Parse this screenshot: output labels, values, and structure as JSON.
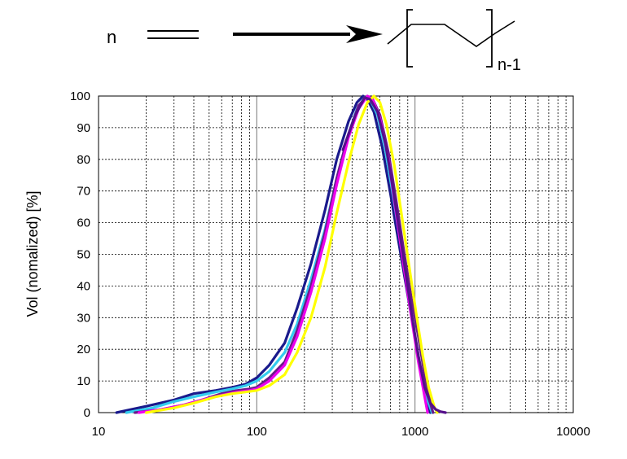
{
  "reaction": {
    "coefficient": "n",
    "subscript": "n-1"
  },
  "chart_data": {
    "type": "line",
    "title": "",
    "xlabel": "",
    "ylabel": "Vol (nomalized) [%]",
    "xscale": "log",
    "xlim": [
      10,
      10000
    ],
    "ylim": [
      0,
      100
    ],
    "grid": true,
    "xticks": [
      10,
      100,
      1000,
      10000
    ],
    "xtick_labels": [
      "10",
      "100",
      "1000",
      "10000"
    ],
    "yticks": [
      0,
      10,
      20,
      30,
      40,
      50,
      60,
      70,
      80,
      90,
      100
    ],
    "ytick_labels": [
      "0",
      "10",
      "20",
      "30",
      "40",
      "50",
      "60",
      "70",
      "80",
      "90",
      "100"
    ],
    "series": [
      {
        "name": "navy",
        "color": "#1a1a8c",
        "x": [
          13,
          20,
          30,
          40,
          55,
          70,
          85,
          100,
          120,
          150,
          180,
          220,
          270,
          320,
          380,
          430,
          470,
          500,
          550,
          620,
          700,
          800,
          900,
          1000,
          1100,
          1200,
          1250
        ],
        "y": [
          0,
          2,
          4,
          6,
          7,
          8,
          9,
          11,
          15,
          22,
          33,
          47,
          64,
          80,
          92,
          98,
          100,
          99,
          95,
          84,
          69,
          52,
          37,
          24,
          12,
          3,
          0
        ]
      },
      {
        "name": "cyan",
        "color": "#33ccee",
        "x": [
          15,
          22,
          30,
          40,
          55,
          70,
          85,
          100,
          120,
          150,
          180,
          220,
          270,
          320,
          380,
          430,
          480,
          520,
          580,
          650,
          730,
          820,
          920,
          1000,
          1100,
          1200,
          1280
        ],
        "y": [
          0,
          1.5,
          3.5,
          5,
          6.5,
          7.5,
          8.5,
          10,
          13,
          19,
          28,
          42,
          58,
          74,
          88,
          96,
          99.5,
          99,
          94,
          83,
          68,
          52,
          36,
          24,
          12,
          4,
          0
        ]
      },
      {
        "name": "purple",
        "color": "#6a1b8a",
        "x": [
          17,
          25,
          35,
          45,
          60,
          75,
          90,
          100,
          120,
          150,
          180,
          220,
          270,
          320,
          380,
          440,
          500,
          540,
          600,
          680,
          760,
          850,
          950,
          1050,
          1150,
          1250,
          1300
        ],
        "y": [
          0,
          1,
          2.5,
          4,
          6,
          7,
          7.5,
          8,
          11,
          16,
          26,
          40,
          57,
          74,
          88,
          97,
          100,
          99,
          94,
          82,
          67,
          51,
          36,
          24,
          12,
          3,
          0
        ]
      },
      {
        "name": "magenta",
        "color": "#ee00ee",
        "x": [
          18,
          25,
          35,
          45,
          60,
          75,
          90,
          100,
          120,
          150,
          180,
          220,
          270,
          320,
          380,
          440,
          500,
          540,
          600,
          680,
          760,
          850,
          950,
          1050,
          1150,
          1200
        ],
        "y": [
          0,
          1,
          2.5,
          4,
          5.5,
          6.5,
          7,
          7.5,
          10,
          15,
          24,
          38,
          55,
          72,
          87,
          96,
          100,
          99,
          93,
          80,
          63,
          46,
          30,
          16,
          5,
          0
        ]
      },
      {
        "name": "yellow",
        "color": "#ffff00",
        "x": [
          20,
          30,
          40,
          55,
          70,
          85,
          100,
          120,
          150,
          180,
          220,
          270,
          320,
          380,
          440,
          500,
          550,
          600,
          660,
          740,
          820,
          920,
          1020,
          1120,
          1220,
          1320,
          1380
        ],
        "y": [
          0,
          1.5,
          3,
          5,
          6,
          6.5,
          7,
          8.5,
          12,
          19,
          30,
          46,
          63,
          79,
          91,
          98,
          100,
          98,
          91,
          78,
          63,
          46,
          31,
          18,
          8,
          2,
          0
        ]
      },
      {
        "name": "dark-purple",
        "color": "#55108a",
        "x": [
          350,
          420,
          480,
          520,
          580,
          650,
          720,
          800,
          880,
          960,
          1050,
          1150,
          1250,
          1350,
          1450,
          1560
        ],
        "y": [
          83,
          94,
          99.5,
          99,
          95,
          85,
          72,
          57,
          43,
          30,
          18,
          8,
          3,
          1,
          0.3,
          0
        ]
      }
    ]
  }
}
